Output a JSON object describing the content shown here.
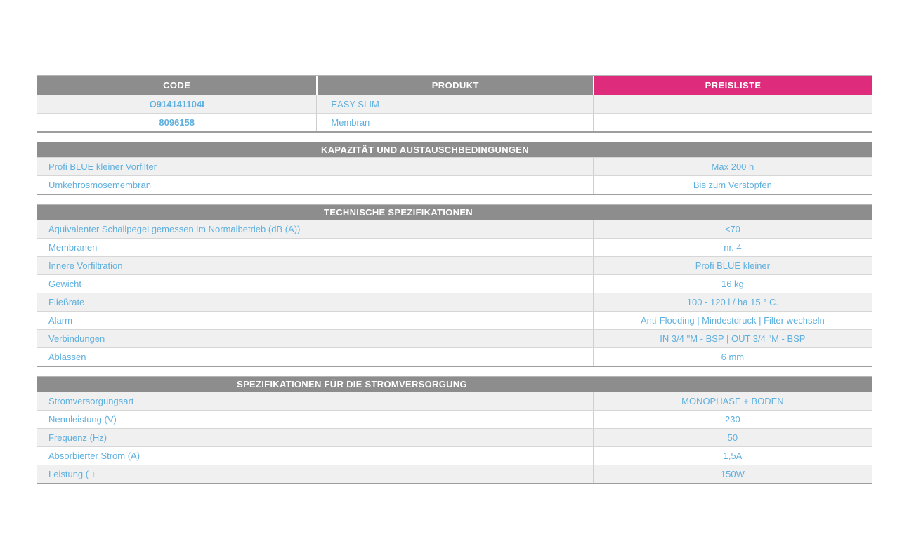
{
  "colors": {
    "accent_pink": "#df2b7c",
    "header_gray": "#8d8d8d",
    "text_blue": "#5fb0df",
    "row_stripe": "#f0f0f0"
  },
  "product_table": {
    "columns": [
      "CODE",
      "PRODUKT",
      "PREISLISTE"
    ],
    "rows": [
      {
        "code": "O914141104I",
        "product": "EASY SLIM",
        "price": ""
      },
      {
        "code": "8096158",
        "product": "Membran",
        "price": ""
      }
    ]
  },
  "sections": [
    {
      "title": "KAPAZITÄT UND AUSTAUSCHBEDINGUNGEN",
      "rows": [
        {
          "label": "Profi BLUE kleiner Vorfilter",
          "value": "Max 200 h"
        },
        {
          "label": "Umkehrosmosemembran",
          "value": "Bis zum Verstopfen"
        }
      ]
    },
    {
      "title": "TECHNISCHE SPEZIFIKATIONEN",
      "rows": [
        {
          "label": "Äquivalenter Schallpegel gemessen im Normalbetrieb (dB (A))",
          "value": "<70"
        },
        {
          "label": "Membranen",
          "value": "nr. 4"
        },
        {
          "label": "Innere Vorfiltration",
          "value": "Profi BLUE kleiner"
        },
        {
          "label": "Gewicht",
          "value": "16 kg"
        },
        {
          "label": "Fließrate",
          "value": "100 - 120 l / ha 15 ° C."
        },
        {
          "label": "Alarm",
          "value": "Anti-Flooding | Mindestdruck | Filter wechseln"
        },
        {
          "label": "Verbindungen",
          "value": "IN 3/4 \"M - BSP | OUT 3/4 \"M - BSP"
        },
        {
          "label": "Ablassen",
          "value": "6 mm"
        }
      ]
    },
    {
      "title": "SPEZIFIKATIONEN FÜR DIE STROMVERSORGUNG",
      "rows": [
        {
          "label": "Stromversorgungsart",
          "value": "MONOPHASE + BODEN"
        },
        {
          "label": "Nennleistung (V)",
          "value": "230"
        },
        {
          "label": "Frequenz (Hz)",
          "value": "50"
        },
        {
          "label": "Absorbierter Strom (A)",
          "value": "1,5A"
        },
        {
          "label": "Leistung (□",
          "value": "150W"
        }
      ]
    }
  ]
}
